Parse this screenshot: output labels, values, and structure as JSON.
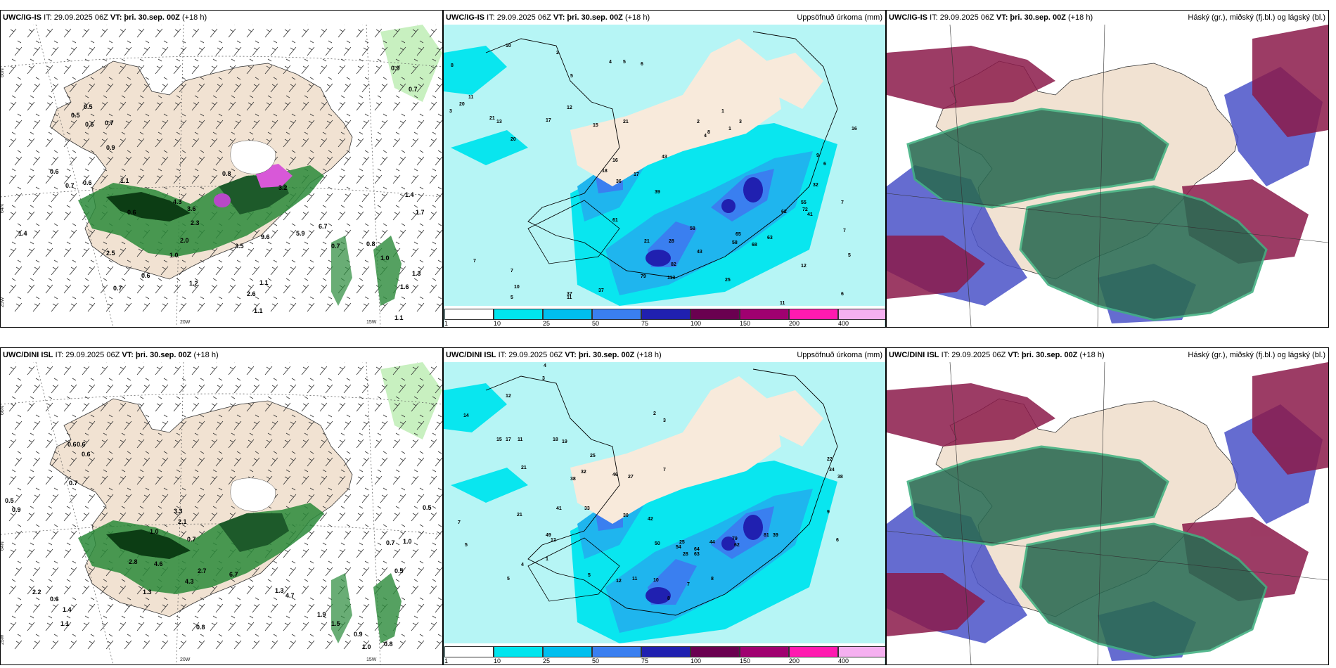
{
  "panels": [
    {
      "model": "UWC/IG-IS",
      "it": "IT: 29.09.2025 06Z",
      "vt_label": "VT:",
      "vt": "þri. 30.sep. 00Z",
      "lead": "(+18 h)",
      "title": ""
    },
    {
      "model": "UWC/IG-IS",
      "it": "IT: 29.09.2025 06Z",
      "vt_label": "VT:",
      "vt": "þri. 30.sep. 00Z",
      "lead": "(+18 h)",
      "title": "Uppsöfnuð úrkoma (mm)"
    },
    {
      "model": "UWC/IG-IS",
      "it": "IT: 29.09.2025 06Z",
      "vt_label": "VT:",
      "vt": "þri. 30.sep. 00Z",
      "lead": "(+18 h)",
      "title": "Háský (gr.), miðský (fj.bl.) og lágský (bl.)"
    },
    {
      "model": "UWC/DINI ISL",
      "it": "IT: 29.09.2025 06Z",
      "vt_label": "VT:",
      "vt": "þri. 30.sep. 00Z",
      "lead": "(+18 h)",
      "title": ""
    },
    {
      "model": "UWC/DINI ISL",
      "it": "IT: 29.09.2025 06Z",
      "vt_label": "VT:",
      "vt": "þri. 30.sep. 00Z",
      "lead": "(+18 h)",
      "title": "Uppsöfnuð úrkoma (mm)"
    },
    {
      "model": "UWC/DINI ISL",
      "it": "IT: 29.09.2025 06Z",
      "vt_label": "VT:",
      "vt": "þri. 30.sep. 00Z",
      "lead": "(+18 h)",
      "title": "Háský (gr.), miðský (fj.bl.) og lágský (bl.)"
    }
  ],
  "grid_labels": {
    "lat66": "66N",
    "lat64": "64N",
    "lon25": "25W",
    "lon20": "20W",
    "lon15": "15W"
  },
  "colorbar": {
    "levels": [
      "1",
      "10",
      "25",
      "50",
      "75",
      "100",
      "150",
      "200",
      "400"
    ],
    "colors": [
      "#ffffff",
      "#00e5ee",
      "#00bfef",
      "#3a7ff0",
      "#2020b0",
      "#6a0050",
      "#a00070",
      "#ff1ab0",
      "#f5b0f0"
    ]
  },
  "colors": {
    "land": "#f1e2d2",
    "precip_bg": "#b6f5f5",
    "cloud_high": "#8b1a4a",
    "cloud_mid": "#3fb080",
    "cloud_low": "#4a52c8"
  },
  "wind_labels": {
    "top": [
      "0.9",
      "0.7",
      "0.6",
      "0.5",
      "0.7",
      "0.5",
      "0.9",
      "0.6",
      "0.7",
      "0.6",
      "1.1",
      "0.6",
      "0.8",
      "3.2",
      "4.3",
      "3.6",
      "2.3",
      "2.0",
      "1.0",
      "1.2",
      "2.5",
      "1.4",
      "0.7",
      "0.6",
      "1.1",
      "1.6",
      "1.3",
      "1.1",
      "2.6",
      "3.5",
      "9.6",
      "5.9",
      "6.7",
      "0.7",
      "0.8",
      "1.0",
      "1.4",
      "1.7",
      "1.1"
    ],
    "bottom": [
      "0.6",
      "0.6",
      "0.6",
      "0.7",
      "0.5",
      "0.9",
      "3.3",
      "2.1",
      "1.0",
      "0.7",
      "2.8",
      "4.6",
      "1.3",
      "2.7",
      "6.7",
      "4.3",
      "2.2",
      "0.6",
      "1.4",
      "1.1",
      "0.5",
      "1.0",
      "0.7",
      "0.5",
      "0.8",
      "1.9",
      "1.5",
      "0.9",
      "1.0",
      "0.8",
      "4.7",
      "1.3"
    ]
  },
  "precip_labels": {
    "top": [
      "10",
      "2",
      "4",
      "5",
      "6",
      "5",
      "8",
      "3",
      "11",
      "13",
      "20",
      "17",
      "12",
      "15",
      "21",
      "16",
      "18",
      "36",
      "17",
      "39",
      "43",
      "61",
      "21",
      "43",
      "28",
      "37",
      "11",
      "37",
      "7",
      "7",
      "5",
      "10",
      "7",
      "6",
      "17",
      "79",
      "113",
      "82",
      "25",
      "58",
      "65",
      "58",
      "68",
      "63",
      "72",
      "55",
      "62",
      "41",
      "32",
      "12",
      "11",
      "9",
      "9",
      "6",
      "7",
      "5",
      "6",
      "9",
      "7",
      "20",
      "21",
      "16",
      "1",
      "2",
      "8",
      "3",
      "1",
      "4"
    ],
    "bottom": [
      "4",
      "3",
      "12",
      "14",
      "15",
      "17",
      "18",
      "19",
      "11",
      "25",
      "32",
      "38",
      "21",
      "33",
      "21",
      "30",
      "27",
      "46",
      "41",
      "49",
      "12",
      "42",
      "50",
      "54",
      "64",
      "63",
      "44",
      "79",
      "62",
      "81",
      "39",
      "25",
      "28",
      "12",
      "11",
      "10",
      "8",
      "7",
      "8",
      "5",
      "4",
      "5",
      "5",
      "7",
      "1",
      "2",
      "3",
      "7",
      "22",
      "34",
      "38",
      "9",
      "6"
    ]
  }
}
